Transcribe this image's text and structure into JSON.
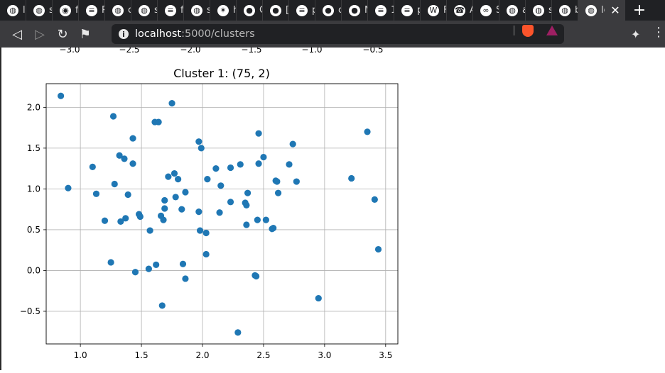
{
  "browser": {
    "tabs": [
      {
        "label": "lo",
        "icon": "globe-icon"
      },
      {
        "label": "s",
        "icon": "globe-icon"
      },
      {
        "label": "fi",
        "icon": "duckduckgo-icon"
      },
      {
        "label": "P",
        "icon": "stackoverflow-icon"
      },
      {
        "label": "c",
        "icon": "globe-icon"
      },
      {
        "label": "s",
        "icon": "globe-icon"
      },
      {
        "label": "fi",
        "icon": "stackoverflow-icon"
      },
      {
        "label": "s",
        "icon": "globe-icon"
      },
      {
        "label": "h",
        "icon": "plotly-icon"
      },
      {
        "label": "C",
        "icon": "github-icon"
      },
      {
        "label": "[",
        "icon": "reddit-icon"
      },
      {
        "label": "p",
        "icon": "stackoverflow-icon"
      },
      {
        "label": "c",
        "icon": "github-icon"
      },
      {
        "label": "N",
        "icon": "github-icon"
      },
      {
        "label": "1",
        "icon": "stackoverflow-icon"
      },
      {
        "label": "p",
        "icon": "stackoverflow-icon"
      },
      {
        "label": "F",
        "icon": "w-icon"
      },
      {
        "label": "A",
        "icon": "phone-icon"
      },
      {
        "label": "S",
        "icon": "infinity-icon"
      },
      {
        "label": "a",
        "icon": "globe-icon"
      },
      {
        "label": "s",
        "icon": "globe-icon"
      },
      {
        "label": "b",
        "icon": "globe-icon"
      },
      {
        "label": "lo",
        "icon": "globe-icon",
        "active": true
      }
    ],
    "new_tab": "+",
    "close": "✕",
    "url_host": "localhost",
    "url_rest": ":5000/clusters",
    "colors": {
      "tabbar": "#202124",
      "toolbar": "#3b3b3e",
      "accent": "#fb542b"
    }
  },
  "prev_axis_ticks": [
    "−3.0",
    "−2.5",
    "−2.0",
    "−1.5",
    "−1.0",
    "−0.5"
  ],
  "chart_data": {
    "type": "scatter",
    "title": "Cluster 1: (75, 2)",
    "xlabel": "",
    "ylabel": "",
    "xlim": [
      0.72,
      3.6
    ],
    "ylim": [
      -0.9,
      2.29
    ],
    "xticks": [
      1.0,
      1.5,
      2.0,
      2.5,
      3.0,
      3.5
    ],
    "xtick_labels": [
      "1.0",
      "1.5",
      "2.0",
      "2.5",
      "3.0",
      "3.5"
    ],
    "yticks": [
      -0.5,
      0.0,
      0.5,
      1.0,
      1.5,
      2.0
    ],
    "ytick_labels": [
      "−0.5",
      "0.0",
      "0.5",
      "1.0",
      "1.5",
      "2.0"
    ],
    "grid": true,
    "color": "#1f77b4",
    "points": [
      [
        0.84,
        2.14
      ],
      [
        0.9,
        1.01
      ],
      [
        1.1,
        1.27
      ],
      [
        1.13,
        0.94
      ],
      [
        1.2,
        0.61
      ],
      [
        1.25,
        0.1
      ],
      [
        1.27,
        1.89
      ],
      [
        1.28,
        1.06
      ],
      [
        1.32,
        1.41
      ],
      [
        1.33,
        0.6
      ],
      [
        1.36,
        1.37
      ],
      [
        1.37,
        0.64
      ],
      [
        1.39,
        0.93
      ],
      [
        1.43,
        1.62
      ],
      [
        1.43,
        1.31
      ],
      [
        1.45,
        -0.02
      ],
      [
        1.48,
        0.69
      ],
      [
        1.49,
        0.66
      ],
      [
        1.56,
        0.02
      ],
      [
        1.57,
        0.49
      ],
      [
        1.61,
        1.82
      ],
      [
        1.62,
        0.07
      ],
      [
        1.64,
        1.82
      ],
      [
        1.66,
        0.67
      ],
      [
        1.67,
        -0.43
      ],
      [
        1.68,
        0.62
      ],
      [
        1.69,
        0.76
      ],
      [
        1.69,
        0.86
      ],
      [
        1.72,
        1.15
      ],
      [
        1.75,
        2.05
      ],
      [
        1.77,
        1.19
      ],
      [
        1.78,
        0.9
      ],
      [
        1.8,
        1.12
      ],
      [
        1.83,
        0.75
      ],
      [
        1.84,
        0.08
      ],
      [
        1.86,
        0.96
      ],
      [
        1.86,
        -0.1
      ],
      [
        1.97,
        1.58
      ],
      [
        1.97,
        0.72
      ],
      [
        1.98,
        0.49
      ],
      [
        1.99,
        1.5
      ],
      [
        2.03,
        0.2
      ],
      [
        2.03,
        0.46
      ],
      [
        2.04,
        1.12
      ],
      [
        2.11,
        1.25
      ],
      [
        2.14,
        0.71
      ],
      [
        2.15,
        1.04
      ],
      [
        2.23,
        1.26
      ],
      [
        2.23,
        0.84
      ],
      [
        2.29,
        -0.76
      ],
      [
        2.31,
        1.3
      ],
      [
        2.35,
        0.83
      ],
      [
        2.36,
        0.56
      ],
      [
        2.36,
        0.8
      ],
      [
        2.37,
        0.95
      ],
      [
        2.43,
        -0.06
      ],
      [
        2.44,
        -0.07
      ],
      [
        2.45,
        0.62
      ],
      [
        2.46,
        1.31
      ],
      [
        2.46,
        1.68
      ],
      [
        2.5,
        1.39
      ],
      [
        2.52,
        0.62
      ],
      [
        2.57,
        0.51
      ],
      [
        2.6,
        1.1
      ],
      [
        2.61,
        1.09
      ],
      [
        2.62,
        0.95
      ],
      [
        2.71,
        1.3
      ],
      [
        2.74,
        1.55
      ],
      [
        2.77,
        1.09
      ],
      [
        2.95,
        -0.34
      ],
      [
        3.22,
        1.13
      ],
      [
        3.35,
        1.7
      ],
      [
        3.41,
        0.87
      ],
      [
        3.44,
        0.26
      ],
      [
        2.58,
        0.52
      ]
    ]
  }
}
